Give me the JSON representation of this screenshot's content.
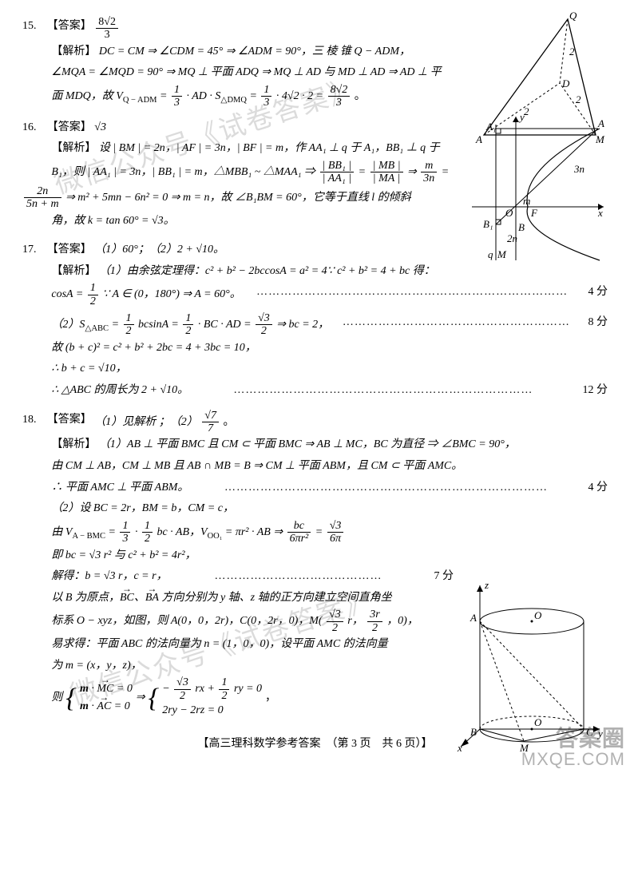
{
  "footer": "【高三理科数学参考答案　（第 3 页　共 6 页）】",
  "watermarks": [
    "微信公众号《试卷答案》",
    "微信公众号《试卷答案》"
  ],
  "corner": {
    "big": "答案圈",
    "small": "MXQE.COM"
  },
  "q15": {
    "num": "15.",
    "ans_label": "【答案】",
    "ans": {
      "num_tex": "8√2",
      "den": "3"
    },
    "jiexi_label": "【解析】",
    "line1_a": "DC = CM ⇒ ∠CDM = 45° ⇒ ∠ADM = 90°，三 棱 锥  Q − ADM，",
    "line2_a": "∠MQA = ∠MQD = 90° ⇒ MQ ⊥ 平面 ADQ ⇒ MQ ⊥ AD 与 MD ⊥ AD ⇒ AD ⊥ 平",
    "line3_prefix": "面 MDQ，故 V",
    "line3_sub": "Q − ADM",
    "line3_mid": " = ",
    "f1": {
      "n": "1",
      "d": "3"
    },
    "line3_mid2": " · AD · S",
    "line3_sub2": "△DMQ",
    "line3_mid3": " = ",
    "f2": {
      "n": "1",
      "d": "3"
    },
    "line3_mid4": " · 4√2 · 2 = ",
    "f3": {
      "n": "8√2",
      "d": "3"
    },
    "line3_end": "。",
    "fig": {
      "Q": "Q",
      "A": "A",
      "M": "M",
      "D": "D",
      "e1": "2",
      "e2": "2",
      "e3": "2"
    }
  },
  "q16": {
    "num": "16.",
    "ans_label": "【答案】",
    "ans_val": "√3",
    "jiexi_label": "【解析】",
    "l1a": "设 | BM | = 2n，| AF | = 3n，| BF | = m，作 AA₁ ⊥ q 于 A₁，BB₁ ⊥ q 于",
    "l2a": "B₁，则 | AA₁ | = 3n，| BB₁ | = m，△MBB₁ ~ △MAA₁ ⇒ ",
    "frac_bb_aa": {
      "n": "| BB₁ |",
      "d": "| AA₁ |"
    },
    "eq1": " = ",
    "frac_mb_ma": {
      "n": "| MB |",
      "d": "| MA |"
    },
    "eq2": " ⇒ ",
    "frac_m_3n": {
      "n": "m",
      "d": "3n"
    },
    "eq3": " = ",
    "l3_lhs": {
      "n": "2n",
      "d": "5n + m"
    },
    "l3a": " ⇒ m² + 5mn − 6n² = 0 ⇒ m = n，故 ∠B₁BM = 60°，它等于直线 l 的倾斜",
    "l4a": "角，故 k = tan 60° = √3。",
    "fig": {
      "A1": "A₁",
      "A": "A",
      "O": "O",
      "F": "F",
      "B1": "B₁",
      "B": "B",
      "M": "M",
      "q": "q",
      "x": "x",
      "y": "y",
      "m": "m",
      "n2": "2n",
      "n3": "3n"
    }
  },
  "q17": {
    "num": "17.",
    "ans_label": "【答案】",
    "ans_text": "（1）60°；（2）2 + √10。",
    "jiexi_label": "【解析】",
    "p1a": "（1）由余弦定理得：c² + b² − 2bccosA = a² = 4∵ c² + b² = 4 + bc 得：",
    "p1b_pre": "cosA = ",
    "half": {
      "n": "1",
      "d": "2"
    },
    "p1b_post": "∵ A ∈ (0，180°) ⇒ A = 60°。",
    "s4": "4 分",
    "p2a_pre": "（2）S",
    "p2a_sub": "△ABC",
    "p2a_mid": " = ",
    "half2": {
      "n": "1",
      "d": "2"
    },
    "p2a_mid2": "bcsinA = ",
    "half3": {
      "n": "1",
      "d": "2"
    },
    "p2a_mid3": " · BC · AD = ",
    "rt3_2": {
      "n": "√3",
      "d": "2"
    },
    "p2a_end": " ⇒ bc = 2，",
    "s8": "8 分",
    "p2b": "故 (b + c)² = c² + b² + 2bc = 4 + 3bc = 10，",
    "p2c": "∴ b + c = √10，",
    "p2d": "∴ △ABC 的周长为 2 + √10。",
    "s12": "12 分"
  },
  "q18": {
    "num": "18.",
    "ans_label": "【答案】",
    "ans_pre": "（1）见解析 ；（2）",
    "ans_frac": {
      "n": "√7",
      "d": "7"
    },
    "ans_post": "。",
    "jiexi_label": "【解析】",
    "l1": "（1）AB ⊥ 平面 BMC 且 CM ⊂ 平面 BMC ⇒ AB ⊥ MC，BC 为直径 ⇒ ∠BMC = 90°，",
    "l2": "由 CM ⊥ AB，CM ⊥ MB 且 AB ∩ MB = B ⇒ CM ⊥ 平面 ABM，且 CM ⊂ 平面 AMC。",
    "l3": "∴ 平面 AMC ⊥ 平面 ABM。",
    "s4": "4 分",
    "l4": "（2）设 BC = 2r，BM = b，CM = c，",
    "l5_pre": "由 V",
    "l5_sub": "A − BMC",
    "l5_eq": " = ",
    "f13": {
      "n": "1",
      "d": "3"
    },
    "dot": " · ",
    "f12": {
      "n": "1",
      "d": "2"
    },
    "l5_mid": "bc · AB，V",
    "l5_sub2": "OO₁",
    "l5_mid2": " = πr² · AB ⇒ ",
    "f_bc_6pr2": {
      "n": "bc",
      "d": "6πr²"
    },
    "eq": " = ",
    "f_r3_6p": {
      "n": "√3",
      "d": "6π"
    },
    "l6": "即 bc = √3 r² 与 c² + b² = 4r²，",
    "l7": "解得：b = √3 r，c = r，",
    "s7": "7 分",
    "l8": "以 B 为原点，BC、BA 方向分别为 y 轴、z 轴的正方向建立空间直角坐",
    "l9_pre": "标系 O − xyz，如图，则 A(0，0，2r)，C(0，2r，0)，M(",
    "f_s3_2": {
      "n": "√3",
      "d": "2"
    },
    "l9_mid": "r，",
    "f_3r_2": {
      "n": "3r",
      "d": "2"
    },
    "l9_post": "，0)，",
    "l10": "易求得：平面 ABC 的法向量为 n = (1，0，0)，设平面 AMC 的法向量",
    "l11": "为 m = (x，y，z)，",
    "sys_pre": "则",
    "sys1a": "m · MC = 0",
    "sys1b": "m · AC = 0",
    "sys_imp": " ⇒ ",
    "sys2a_pre": "− ",
    "sys2a_f": {
      "n": "√3",
      "d": "2"
    },
    "sys2a_mid": "rx + ",
    "sys2a_f2": {
      "n": "1",
      "d": "2"
    },
    "sys2a_post": "ry = 0",
    "sys2b": "2ry − 2rz = 0",
    "sys_end": "，",
    "fig": {
      "A": "A",
      "B": "B",
      "C": "C",
      "M": "M",
      "O": "O",
      "O2": "O",
      "x": "x",
      "y": "y",
      "z": "z"
    }
  }
}
